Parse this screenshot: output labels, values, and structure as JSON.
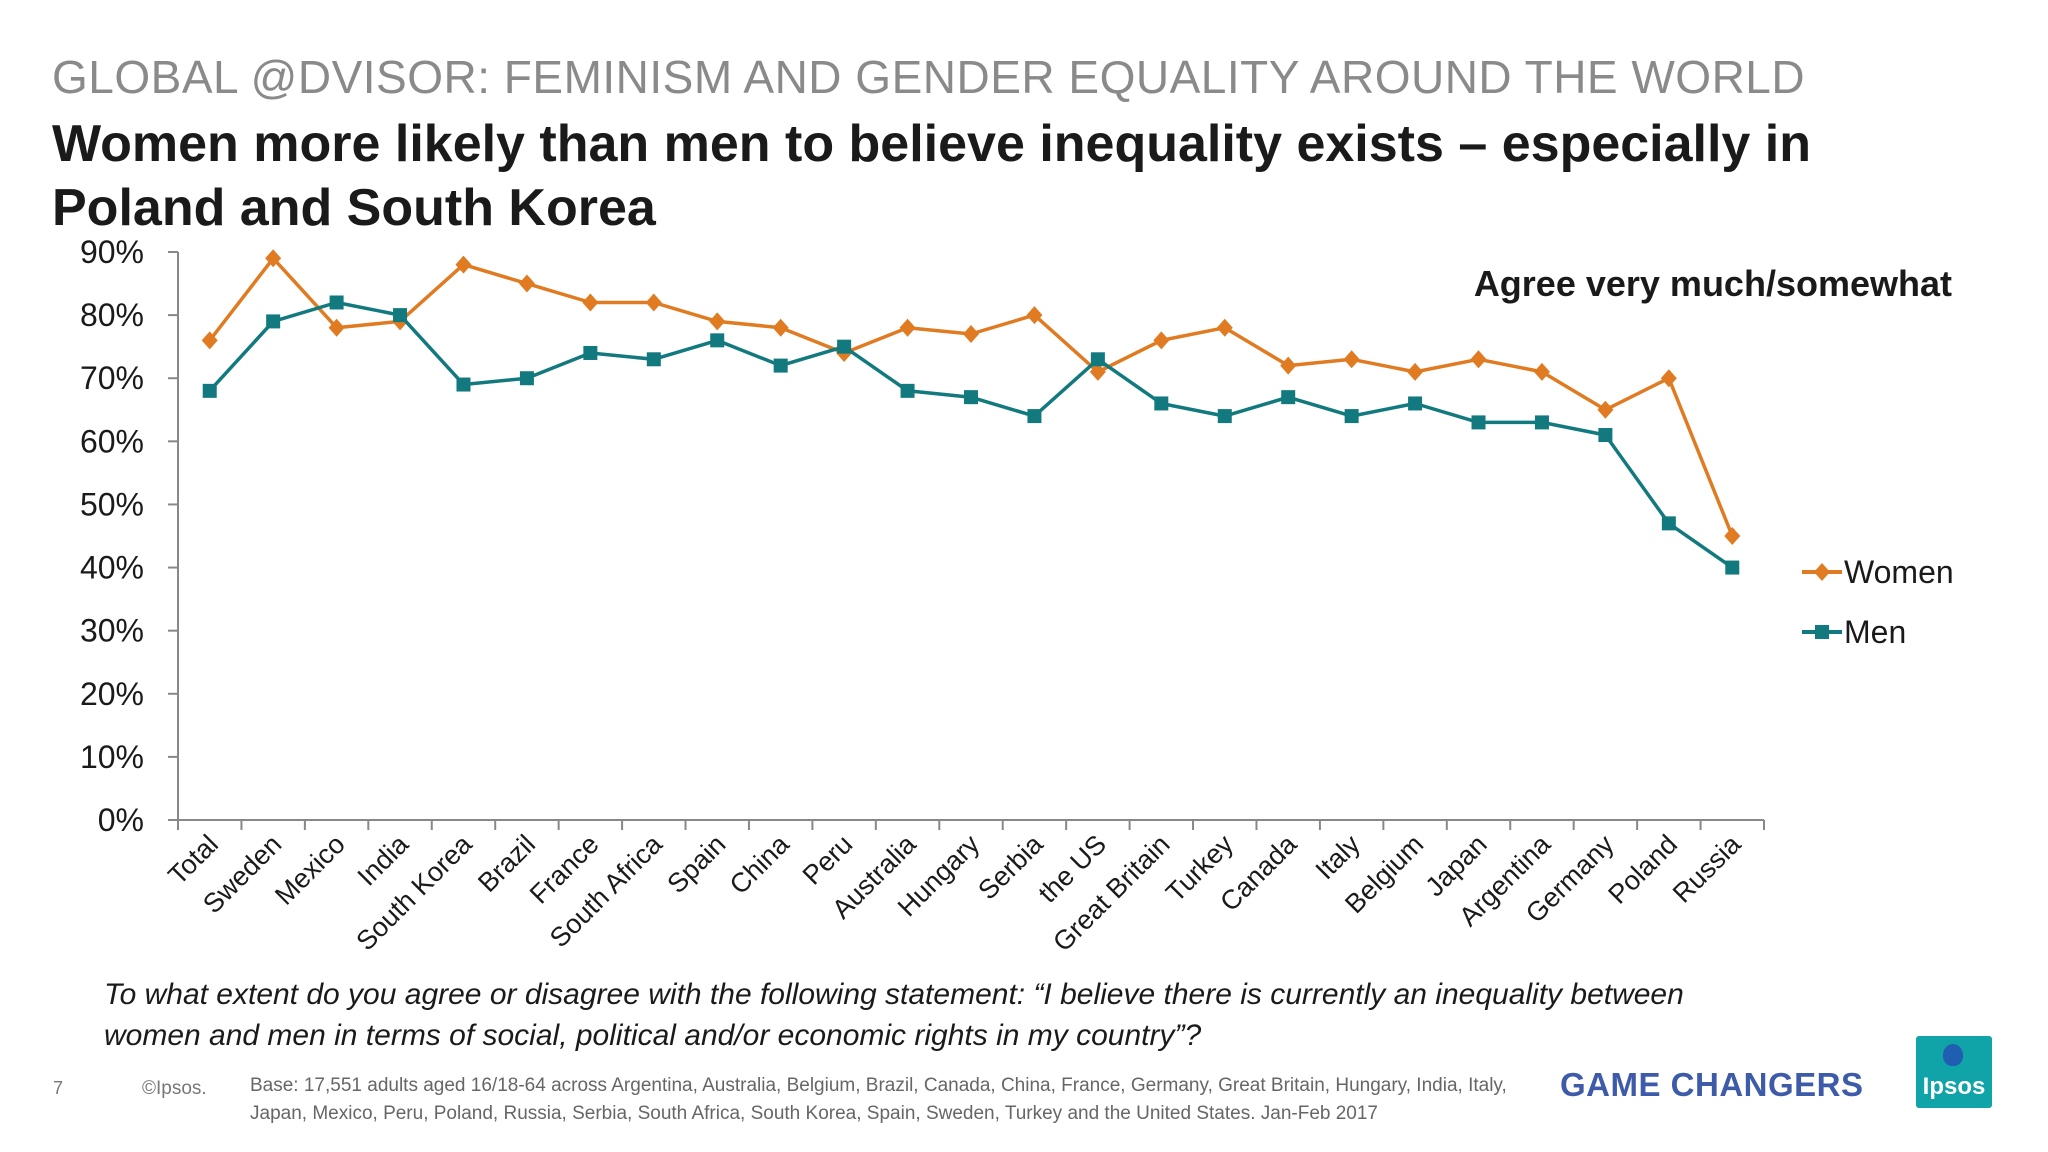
{
  "slide": {
    "overtitle": "GLOBAL @DVISOR: FEMINISM AND GENDER EQUALITY AROUND THE WORLD",
    "headline": "Women more likely than men to believe inequality exists – especially in Poland and South Korea",
    "question": "To what extent do you agree or disagree with the following statement: “I believe there is currently an inequality between women and men in terms of social, political and/or economic rights in my country”?",
    "page_number": "7",
    "copyright": "©Ipsos.",
    "base_note": "Base: 17,551  adults aged 16/18-64 across  Argentina, Australia, Belgium, Brazil, Canada, China, France, Germany, Great Britain, Hungary, India, Italy, Japan, Mexico, Peru, Poland, Russia, Serbia, South Africa, South Korea, Spain, Sweden, Turkey and the United States. Jan-Feb 2017",
    "tagline": "GAME CHANGERS",
    "logo_text": "Ipsos"
  },
  "chart_data": {
    "type": "line",
    "annotation": "Agree very much/somewhat",
    "categories": [
      "Total",
      "Sweden",
      "Mexico",
      "India",
      "South Korea",
      "Brazil",
      "France",
      "South Africa",
      "Spain",
      "China",
      "Peru",
      "Australia",
      "Hungary",
      "Serbia",
      "the US",
      "Great Britain",
      "Turkey",
      "Canada",
      "Italy",
      "Belgium",
      "Japan",
      "Argentina",
      "Germany",
      "Poland",
      "Russia"
    ],
    "series": [
      {
        "name": "Women",
        "color": "#e07b22",
        "marker": "diamond",
        "values": [
          76,
          89,
          78,
          79,
          88,
          85,
          82,
          82,
          79,
          78,
          74,
          78,
          77,
          80,
          71,
          76,
          78,
          72,
          73,
          71,
          73,
          71,
          65,
          70,
          45
        ]
      },
      {
        "name": "Men",
        "color": "#127a7e",
        "marker": "square",
        "values": [
          68,
          79,
          82,
          80,
          69,
          70,
          74,
          73,
          76,
          72,
          75,
          68,
          67,
          64,
          73,
          66,
          64,
          67,
          64,
          66,
          63,
          63,
          61,
          47,
          40
        ]
      }
    ],
    "ylim": [
      0,
      90
    ],
    "yticks": [
      "0%",
      "10%",
      "20%",
      "30%",
      "40%",
      "50%",
      "60%",
      "70%",
      "80%",
      "90%"
    ],
    "grid": false,
    "legend": "right"
  }
}
